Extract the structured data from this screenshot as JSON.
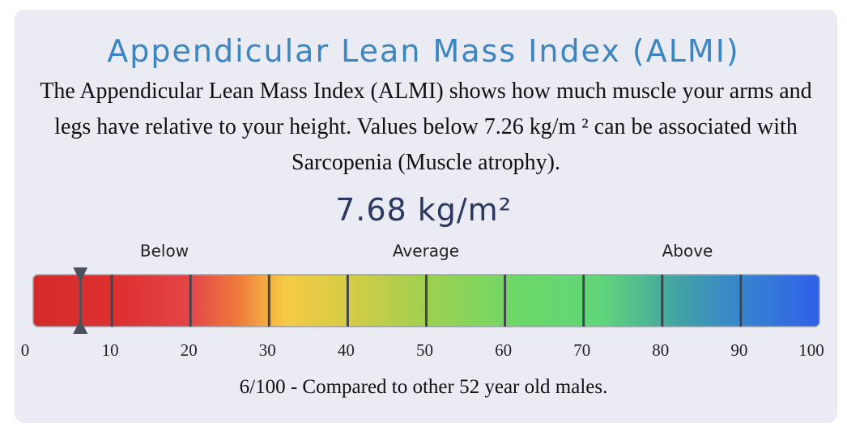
{
  "title": "Appendicular Lean Mass Index (ALMI)",
  "description": "The Appendicular Lean Mass Index (ALMI) shows how much muscle your arms and legs have relative to your height. Values below 7.26 kg/m ² can be associated with Sarcopenia (Muscle atrophy).",
  "result": "7.68 kg/m²",
  "gauge": {
    "zones": [
      "Below",
      "Average",
      "Above"
    ],
    "xlim": [
      0,
      100
    ],
    "xticks": [
      0,
      10,
      20,
      30,
      40,
      50,
      60,
      70,
      80,
      90,
      100
    ],
    "value": 6
  },
  "footer": "6/100 - Compared to other 52 year old males."
}
